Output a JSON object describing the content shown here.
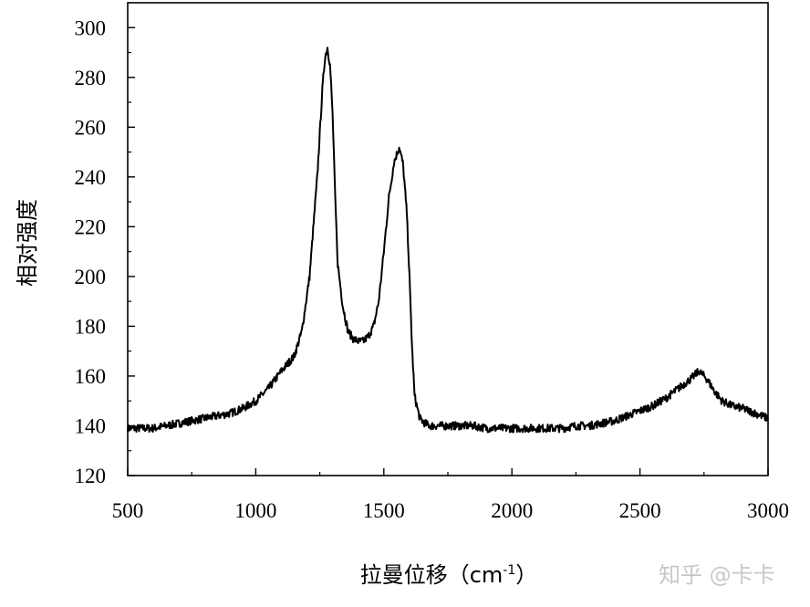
{
  "chart_data": {
    "type": "line",
    "title": "",
    "xlabel": "拉曼位移（cm",
    "xlabel_sup": "-1",
    "xlabel_close": "）",
    "ylabel": "相对强度",
    "xlim": [
      500,
      3000
    ],
    "ylim": [
      120,
      310
    ],
    "xticks": [
      500,
      1000,
      1500,
      2000,
      2500,
      3000
    ],
    "xtick_labels": [
      "500",
      "1000",
      "1500",
      "2000",
      "2500",
      "3000"
    ],
    "yticks": [
      120,
      140,
      160,
      180,
      200,
      220,
      240,
      260,
      280,
      300
    ],
    "ytick_labels": [
      "120",
      "140",
      "160",
      "180",
      "200",
      "220",
      "240",
      "260",
      "280",
      "300"
    ],
    "grid": false,
    "line_color": "#000000",
    "series": [
      {
        "x": [
          500,
          550,
          600,
          650,
          700,
          750,
          800,
          850,
          900,
          950,
          1000,
          1050,
          1100,
          1150,
          1180,
          1210,
          1240,
          1260,
          1270,
          1280,
          1290,
          1300,
          1310,
          1320,
          1340,
          1360,
          1380,
          1400,
          1420,
          1440,
          1460,
          1480,
          1500,
          1520,
          1540,
          1560,
          1575,
          1590,
          1600,
          1610,
          1620,
          1640,
          1660,
          1680,
          1700,
          1750,
          1800,
          1850,
          1900,
          1950,
          2000,
          2050,
          2100,
          2150,
          2200,
          2250,
          2300,
          2350,
          2400,
          2450,
          2500,
          2550,
          2600,
          2650,
          2700,
          2730,
          2760,
          2790,
          2820,
          2860,
          2900,
          2950,
          3000
        ],
        "y": [
          139,
          139,
          139,
          140,
          141,
          142,
          143,
          144,
          145,
          147,
          150,
          155,
          162,
          168,
          178,
          200,
          240,
          275,
          288,
          292,
          285,
          265,
          232,
          205,
          188,
          178,
          175,
          174,
          174,
          176,
          180,
          190,
          210,
          232,
          246,
          252,
          245,
          225,
          200,
          172,
          152,
          143,
          141,
          140,
          140,
          140,
          140,
          140,
          139,
          139,
          139,
          139,
          139,
          139,
          139,
          140,
          140,
          141,
          142,
          144,
          146,
          148,
          151,
          155,
          159,
          162,
          159,
          154,
          150,
          148,
          147,
          145,
          143
        ]
      }
    ]
  },
  "watermark": "知乎 @卡卡"
}
